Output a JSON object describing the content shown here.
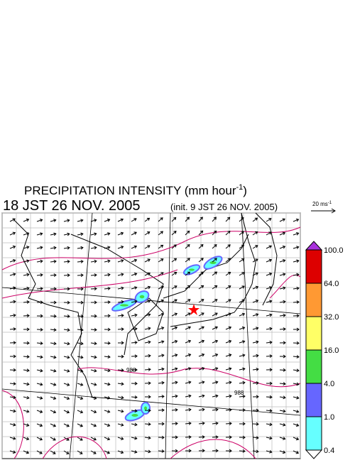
{
  "header": {
    "title": "PRECIPITATION INTENSITY (mm hour",
    "title_sup": "-1",
    "title_close": ")",
    "valid_time": "18 JST 26 NOV. 2005",
    "init_time": "(init. 9 JST 26 NOV. 2005)"
  },
  "wind_legend": {
    "label": "20 ms",
    "label_sup": "-1"
  },
  "colorbar": {
    "labels": [
      "100.0",
      "64.0",
      "32.0",
      "16.0",
      "4.0",
      "1.0",
      "0.4"
    ],
    "colors": [
      "#dd0000",
      "#ff9933",
      "#ffff66",
      "#44dd44",
      "#6666ff",
      "#66ffff"
    ],
    "over_color": "#aa33dd",
    "under_color": "#ffffff"
  },
  "contour_labels": [
    "988",
    "988"
  ]
}
